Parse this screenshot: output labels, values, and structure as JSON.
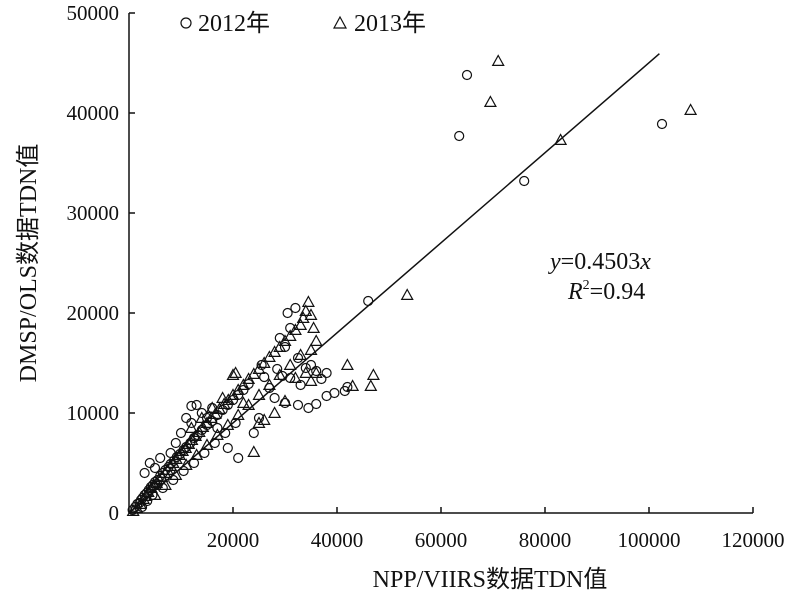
{
  "chart_data": {
    "type": "scatter",
    "xlabel": "NPP/VIIRS数据TDN值",
    "ylabel": "DMSP/OLS数据TDN值",
    "xlim": [
      0,
      120000
    ],
    "ylim": [
      0,
      50000
    ],
    "x_ticks": [
      "20000",
      "40000",
      "60000",
      "80000",
      "100000",
      "120000"
    ],
    "y_ticks": [
      "0",
      "10000",
      "20000",
      "30000",
      "40000",
      "50000"
    ],
    "legend_position": "top-left",
    "annotation": {
      "y_var": "y",
      "equation_rest": "=0.4503",
      "x_var": "x",
      "r_symbol": "R",
      "r_exp": "2",
      "r_value": "=0.94"
    },
    "fit_line": {
      "slope": 0.4503,
      "x_range": [
        0,
        102000
      ]
    },
    "series": [
      {
        "name": "2012年",
        "marker": "circle",
        "points": [
          [
            700,
            300
          ],
          [
            1200,
            600
          ],
          [
            1600,
            900
          ],
          [
            2000,
            1000
          ],
          [
            2300,
            1300
          ],
          [
            2600,
            1500
          ],
          [
            3000,
            1800
          ],
          [
            3400,
            2000
          ],
          [
            3800,
            2300
          ],
          [
            4200,
            2600
          ],
          [
            4600,
            2800
          ],
          [
            5000,
            3100
          ],
          [
            5500,
            3300
          ],
          [
            6000,
            3700
          ],
          [
            6500,
            4000
          ],
          [
            7000,
            4300
          ],
          [
            7600,
            4600
          ],
          [
            8000,
            4900
          ],
          [
            8600,
            5200
          ],
          [
            9200,
            5600
          ],
          [
            9800,
            5900
          ],
          [
            10500,
            6300
          ],
          [
            11000,
            6600
          ],
          [
            11800,
            7000
          ],
          [
            12500,
            7500
          ],
          [
            13200,
            7800
          ],
          [
            14000,
            8300
          ],
          [
            15000,
            8800
          ],
          [
            16000,
            9200
          ],
          [
            17000,
            9800
          ],
          [
            18000,
            10300
          ],
          [
            19000,
            10800
          ],
          [
            20000,
            11300
          ],
          [
            21000,
            11800
          ],
          [
            22000,
            12300
          ],
          [
            23000,
            12900
          ],
          [
            3000,
            4000
          ],
          [
            4000,
            5000
          ],
          [
            5000,
            4500
          ],
          [
            6000,
            5500
          ],
          [
            8000,
            6000
          ],
          [
            9000,
            7000
          ],
          [
            10000,
            8000
          ],
          [
            12000,
            9000
          ],
          [
            14000,
            10000
          ],
          [
            16000,
            10500
          ],
          [
            2500,
            600
          ],
          [
            3500,
            1200
          ],
          [
            4500,
            1800
          ],
          [
            6500,
            2500
          ],
          [
            8500,
            3300
          ],
          [
            10500,
            4200
          ],
          [
            12500,
            5000
          ],
          [
            14500,
            6000
          ],
          [
            16500,
            7000
          ],
          [
            18500,
            8000
          ],
          [
            20500,
            9000
          ],
          [
            11000,
            9500
          ],
          [
            12000,
            10700
          ],
          [
            13000,
            10800
          ],
          [
            15000,
            9500
          ],
          [
            17000,
            8500
          ],
          [
            19000,
            6500
          ],
          [
            21000,
            5500
          ],
          [
            24000,
            8000
          ],
          [
            25000,
            9500
          ],
          [
            25500,
            14800
          ],
          [
            26000,
            13600
          ],
          [
            27000,
            12500
          ],
          [
            28000,
            11500
          ],
          [
            28500,
            14400
          ],
          [
            29000,
            17500
          ],
          [
            29500,
            13700
          ],
          [
            30000,
            16600
          ],
          [
            30500,
            20000
          ],
          [
            31000,
            18500
          ],
          [
            32000,
            20500
          ],
          [
            32500,
            15500
          ],
          [
            33000,
            12800
          ],
          [
            34000,
            14500
          ],
          [
            35000,
            14800
          ],
          [
            36000,
            14200
          ],
          [
            37000,
            13400
          ],
          [
            38000,
            14000
          ],
          [
            30000,
            11000
          ],
          [
            31000,
            13500
          ],
          [
            32500,
            10800
          ],
          [
            34500,
            10500
          ],
          [
            36000,
            10900
          ],
          [
            38000,
            11700
          ],
          [
            39500,
            12000
          ],
          [
            41500,
            12200
          ],
          [
            42000,
            12600
          ],
          [
            46000,
            21200
          ],
          [
            63500,
            37700
          ],
          [
            65000,
            43800
          ],
          [
            76000,
            33200
          ],
          [
            102500,
            38900
          ]
        ]
      },
      {
        "name": "2013年",
        "marker": "triangle",
        "points": [
          [
            800,
            200
          ],
          [
            1500,
            500
          ],
          [
            2200,
            900
          ],
          [
            2800,
            1400
          ],
          [
            3300,
            1700
          ],
          [
            3700,
            2100
          ],
          [
            4300,
            2500
          ],
          [
            4800,
            2800
          ],
          [
            5300,
            3000
          ],
          [
            5800,
            3400
          ],
          [
            6300,
            3600
          ],
          [
            6900,
            4000
          ],
          [
            7400,
            4300
          ],
          [
            8000,
            4700
          ],
          [
            8500,
            5000
          ],
          [
            9100,
            5400
          ],
          [
            9700,
            5800
          ],
          [
            10300,
            6200
          ],
          [
            10900,
            6500
          ],
          [
            11500,
            6900
          ],
          [
            12100,
            7300
          ],
          [
            12800,
            7700
          ],
          [
            13500,
            8100
          ],
          [
            14200,
            8600
          ],
          [
            15000,
            9000
          ],
          [
            15800,
            9500
          ],
          [
            16600,
            9900
          ],
          [
            17400,
            10400
          ],
          [
            18300,
            10900
          ],
          [
            19100,
            11300
          ],
          [
            20000,
            11800
          ],
          [
            21000,
            12300
          ],
          [
            22000,
            12800
          ],
          [
            23000,
            13400
          ],
          [
            24000,
            13900
          ],
          [
            25000,
            14400
          ],
          [
            26000,
            15000
          ],
          [
            27000,
            15600
          ],
          [
            28000,
            16100
          ],
          [
            29000,
            16600
          ],
          [
            30000,
            17200
          ],
          [
            31000,
            17700
          ],
          [
            32000,
            18300
          ],
          [
            33000,
            18800
          ],
          [
            33500,
            19500
          ],
          [
            34000,
            20200
          ],
          [
            34500,
            21100
          ],
          [
            35000,
            19800
          ],
          [
            35500,
            18500
          ],
          [
            36000,
            17200
          ],
          [
            5000,
            1800
          ],
          [
            7000,
            2800
          ],
          [
            9000,
            3800
          ],
          [
            11000,
            4800
          ],
          [
            13000,
            5800
          ],
          [
            15000,
            6800
          ],
          [
            17000,
            7800
          ],
          [
            19000,
            8800
          ],
          [
            21000,
            9800
          ],
          [
            23000,
            10800
          ],
          [
            25000,
            11800
          ],
          [
            27000,
            12800
          ],
          [
            29000,
            13800
          ],
          [
            31000,
            14800
          ],
          [
            33000,
            15800
          ],
          [
            35000,
            16300
          ],
          [
            12000,
            8500
          ],
          [
            14000,
            9500
          ],
          [
            16000,
            10500
          ],
          [
            18000,
            11500
          ],
          [
            20000,
            13800
          ],
          [
            20500,
            14000
          ],
          [
            22000,
            11000
          ],
          [
            24000,
            6100
          ],
          [
            25000,
            9000
          ],
          [
            26000,
            9300
          ],
          [
            28000,
            10000
          ],
          [
            30000,
            11200
          ],
          [
            32000,
            13500
          ],
          [
            34000,
            14000
          ],
          [
            35000,
            13200
          ],
          [
            36000,
            14000
          ],
          [
            42000,
            14800
          ],
          [
            43000,
            12700
          ],
          [
            46500,
            12700
          ],
          [
            47000,
            13800
          ],
          [
            53500,
            21800
          ],
          [
            69500,
            41100
          ],
          [
            71000,
            45200
          ],
          [
            83000,
            37300
          ],
          [
            108000,
            40300
          ]
        ]
      }
    ]
  }
}
